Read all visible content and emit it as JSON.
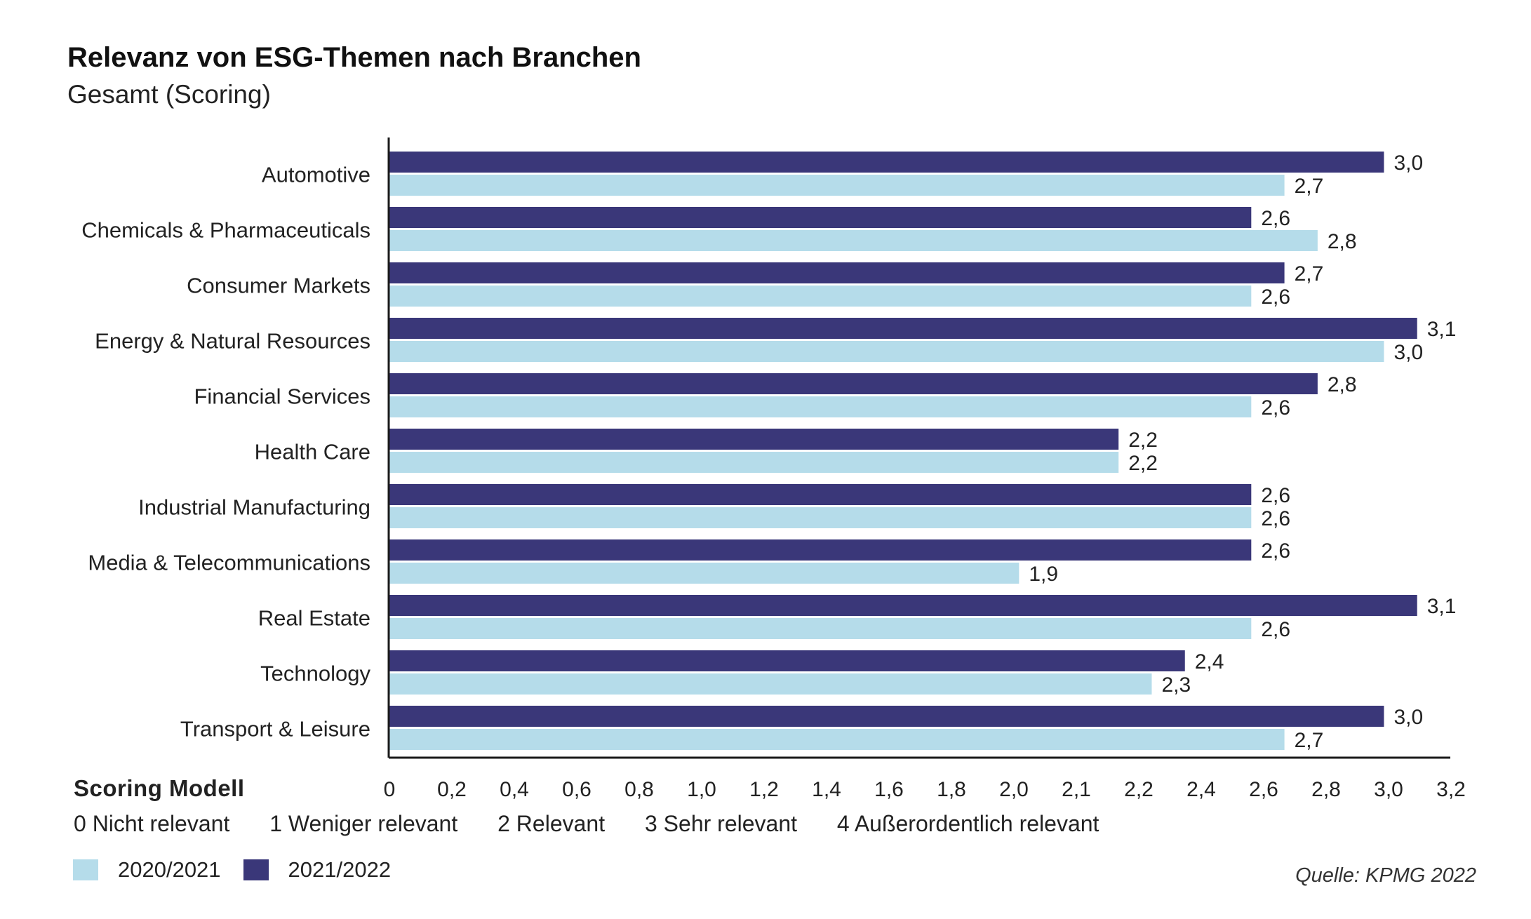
{
  "chart_data": {
    "type": "bar",
    "orientation": "horizontal",
    "title": "Relevanz von ESG-Themen nach Branchen",
    "subtitle": "Gesamt (Scoring)",
    "categories": [
      "Automotive",
      "Chemicals & Pharmaceuticals",
      "Consumer Markets",
      "Energy & Natural Resources",
      "Financial Services",
      "Health Care",
      "Industrial Manufacturing",
      "Media & Telecommunications",
      "Real Estate",
      "Technology",
      "Transport & Leisure"
    ],
    "series": [
      {
        "name": "2021/2022",
        "color": "#3a3779",
        "values": [
          3.0,
          2.6,
          2.7,
          3.1,
          2.8,
          2.2,
          2.6,
          2.6,
          3.1,
          2.4,
          3.0
        ],
        "labels": [
          "3,0",
          "2,6",
          "2,7",
          "3,1",
          "2,8",
          "2,2",
          "2,6",
          "2,6",
          "3,1",
          "2,4",
          "3,0"
        ]
      },
      {
        "name": "2020/2021",
        "color": "#b5dcea",
        "values": [
          2.7,
          2.8,
          2.6,
          3.0,
          2.6,
          2.2,
          2.6,
          1.9,
          2.6,
          2.3,
          2.7
        ],
        "labels": [
          "2,7",
          "2,8",
          "2,6",
          "3,0",
          "2,6",
          "2,2",
          "2,6",
          "1,9",
          "2,6",
          "2,3",
          "2,7"
        ]
      }
    ],
    "x_ticks": [
      "0",
      "0,2",
      "0,4",
      "0,6",
      "0,8",
      "1,0",
      "1,2",
      "1,4",
      "1,6",
      "1,8",
      "2,0",
      "2,1",
      "2,2",
      "2,4",
      "2,6",
      "2,8",
      "3,0",
      "3,2"
    ],
    "xlim": [
      0,
      3.2
    ],
    "grid": false,
    "legend_position": "bottom-left"
  },
  "scoring": {
    "title": "Scoring Modell",
    "levels": [
      "0 Nicht relevant",
      "1 Weniger relevant",
      "2 Relevant",
      "3 Sehr relevant",
      "4 Außerordentlich relevant"
    ]
  },
  "legend": {
    "items": [
      {
        "label": "2020/2021",
        "color": "#b5dcea"
      },
      {
        "label": "2021/2022",
        "color": "#3a3779"
      }
    ]
  },
  "source": "Quelle: KPMG 2022"
}
